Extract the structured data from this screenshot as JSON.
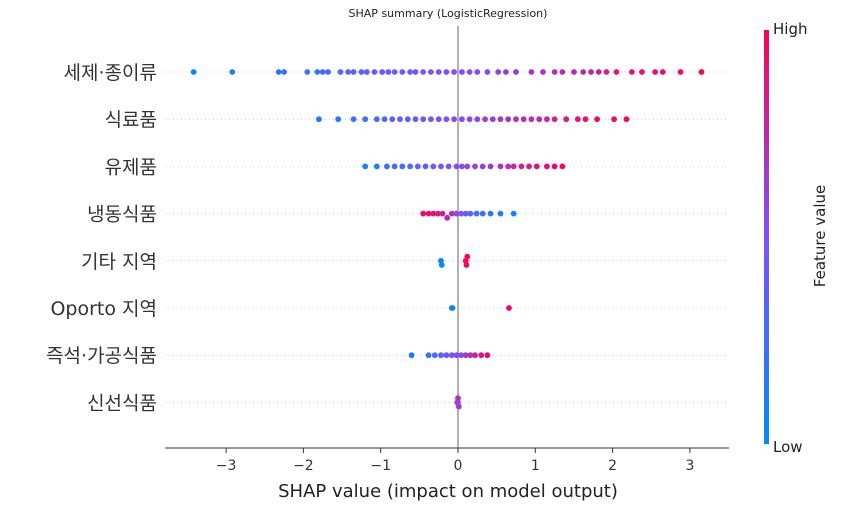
{
  "chart_data": {
    "type": "scatter",
    "title": "SHAP summary (LogisticRegression)",
    "xlabel": "SHAP value (impact on model output)",
    "ylabel": "",
    "xlim": [
      -3.8,
      3.5
    ],
    "xticks": [
      -3,
      -2,
      -1,
      0,
      1,
      2,
      3
    ],
    "features": [
      {
        "name": "세제·종이류",
        "points": [
          [
            -3.42,
            0.05
          ],
          [
            -2.92,
            0.1
          ],
          [
            -2.32,
            0.15
          ],
          [
            -2.25,
            0.2
          ],
          [
            -1.95,
            0.25
          ],
          [
            -1.82,
            0.22
          ],
          [
            -1.75,
            0.28
          ],
          [
            -1.68,
            0.3
          ],
          [
            -1.52,
            0.32
          ],
          [
            -1.42,
            0.34
          ],
          [
            -1.35,
            0.36
          ],
          [
            -1.25,
            0.38
          ],
          [
            -1.18,
            0.4
          ],
          [
            -1.08,
            0.42
          ],
          [
            -0.98,
            0.43
          ],
          [
            -0.9,
            0.44
          ],
          [
            -0.82,
            0.45
          ],
          [
            -0.72,
            0.46
          ],
          [
            -0.62,
            0.47
          ],
          [
            -0.55,
            0.48
          ],
          [
            -0.45,
            0.49
          ],
          [
            -0.35,
            0.5
          ],
          [
            -0.25,
            0.51
          ],
          [
            -0.15,
            0.52
          ],
          [
            -0.05,
            0.53
          ],
          [
            0.05,
            0.54
          ],
          [
            0.15,
            0.55
          ],
          [
            0.25,
            0.56
          ],
          [
            0.38,
            0.57
          ],
          [
            0.52,
            0.6
          ],
          [
            0.62,
            0.62
          ],
          [
            0.75,
            0.64
          ],
          [
            0.95,
            0.66
          ],
          [
            1.1,
            0.68
          ],
          [
            1.25,
            0.7
          ],
          [
            1.35,
            0.72
          ],
          [
            1.5,
            0.74
          ],
          [
            1.62,
            0.76
          ],
          [
            1.72,
            0.78
          ],
          [
            1.82,
            0.8
          ],
          [
            1.92,
            0.82
          ],
          [
            2.05,
            0.85
          ],
          [
            2.25,
            0.88
          ],
          [
            2.38,
            0.9
          ],
          [
            2.55,
            0.92
          ],
          [
            2.65,
            0.93
          ],
          [
            2.88,
            0.95
          ],
          [
            3.15,
            0.97
          ]
        ]
      },
      {
        "name": "식료품",
        "points": [
          [
            -1.8,
            0.1
          ],
          [
            -1.55,
            0.15
          ],
          [
            -1.35,
            0.2
          ],
          [
            -1.2,
            0.25
          ],
          [
            -1.05,
            0.3
          ],
          [
            -0.95,
            0.33
          ],
          [
            -0.85,
            0.36
          ],
          [
            -0.75,
            0.38
          ],
          [
            -0.65,
            0.4
          ],
          [
            -0.55,
            0.42
          ],
          [
            -0.45,
            0.44
          ],
          [
            -0.35,
            0.46
          ],
          [
            -0.25,
            0.48
          ],
          [
            -0.15,
            0.5
          ],
          [
            -0.05,
            0.52
          ],
          [
            0.05,
            0.54
          ],
          [
            0.15,
            0.56
          ],
          [
            0.25,
            0.58
          ],
          [
            0.35,
            0.6
          ],
          [
            0.45,
            0.62
          ],
          [
            0.55,
            0.64
          ],
          [
            0.65,
            0.66
          ],
          [
            0.75,
            0.68
          ],
          [
            0.85,
            0.7
          ],
          [
            0.95,
            0.72
          ],
          [
            1.05,
            0.74
          ],
          [
            1.15,
            0.76
          ],
          [
            1.25,
            0.8
          ],
          [
            1.4,
            0.84
          ],
          [
            1.55,
            0.88
          ],
          [
            1.65,
            0.9
          ],
          [
            1.8,
            0.92
          ],
          [
            2.02,
            0.94
          ],
          [
            2.18,
            0.96
          ]
        ]
      },
      {
        "name": "유제품",
        "points": [
          [
            -1.2,
            0.1
          ],
          [
            -1.05,
            0.15
          ],
          [
            -0.92,
            0.2
          ],
          [
            -0.82,
            0.24
          ],
          [
            -0.72,
            0.28
          ],
          [
            -0.62,
            0.32
          ],
          [
            -0.52,
            0.36
          ],
          [
            -0.42,
            0.4
          ],
          [
            -0.32,
            0.44
          ],
          [
            -0.22,
            0.46
          ],
          [
            -0.12,
            0.48
          ],
          [
            -0.02,
            0.52
          ],
          [
            0.05,
            0.55
          ],
          [
            0.12,
            0.58
          ],
          [
            0.22,
            0.6
          ],
          [
            0.32,
            0.62
          ],
          [
            0.42,
            0.64
          ],
          [
            0.55,
            0.68
          ],
          [
            0.65,
            0.72
          ],
          [
            0.72,
            0.76
          ],
          [
            0.82,
            0.8
          ],
          [
            0.92,
            0.85
          ],
          [
            1.02,
            0.9
          ],
          [
            1.15,
            0.93
          ],
          [
            1.25,
            0.95
          ],
          [
            1.35,
            0.97
          ]
        ]
      },
      {
        "name": "냉동식품",
        "points": [
          [
            -0.45,
            0.95
          ],
          [
            -0.38,
            0.92
          ],
          [
            -0.32,
            0.9
          ],
          [
            -0.26,
            0.85
          ],
          [
            -0.2,
            0.8
          ],
          [
            -0.14,
            0.75
          ],
          [
            -0.08,
            0.7
          ],
          [
            -0.02,
            0.6
          ],
          [
            0.04,
            0.5
          ],
          [
            0.1,
            0.4
          ],
          [
            0.16,
            0.32
          ],
          [
            0.24,
            0.28
          ],
          [
            0.32,
            0.22
          ],
          [
            0.42,
            0.18
          ],
          [
            0.55,
            0.12
          ],
          [
            0.72,
            0.08
          ]
        ]
      },
      {
        "name": "기타 지역",
        "points": [
          [
            -0.22,
            0.05
          ],
          [
            -0.21,
            0.05
          ],
          [
            0.1,
            0.98
          ],
          [
            0.11,
            0.98
          ],
          [
            0.12,
            0.98
          ]
        ]
      },
      {
        "name": "Oporto 지역",
        "points": [
          [
            -0.08,
            0.05
          ],
          [
            -0.07,
            0.05
          ],
          [
            0.66,
            0.95
          ]
        ]
      },
      {
        "name": "즉석·가공식품",
        "points": [
          [
            -0.6,
            0.1
          ],
          [
            -0.38,
            0.2
          ],
          [
            -0.3,
            0.3
          ],
          [
            -0.22,
            0.36
          ],
          [
            -0.15,
            0.42
          ],
          [
            -0.08,
            0.48
          ],
          [
            -0.02,
            0.52
          ],
          [
            0.04,
            0.58
          ],
          [
            0.1,
            0.64
          ],
          [
            0.16,
            0.7
          ],
          [
            0.22,
            0.78
          ],
          [
            0.3,
            0.86
          ],
          [
            0.38,
            0.92
          ]
        ]
      },
      {
        "name": "신선식품",
        "points": [
          [
            -0.01,
            0.55
          ],
          [
            0.0,
            0.6
          ],
          [
            0.01,
            0.65
          ],
          [
            0.0,
            0.7
          ]
        ]
      }
    ],
    "colorbar": {
      "label": "Feature value",
      "high": "High",
      "low": "Low",
      "low_color": "#008bfb",
      "mid_color": "#7c52ff",
      "high_color": "#ff0052"
    }
  }
}
